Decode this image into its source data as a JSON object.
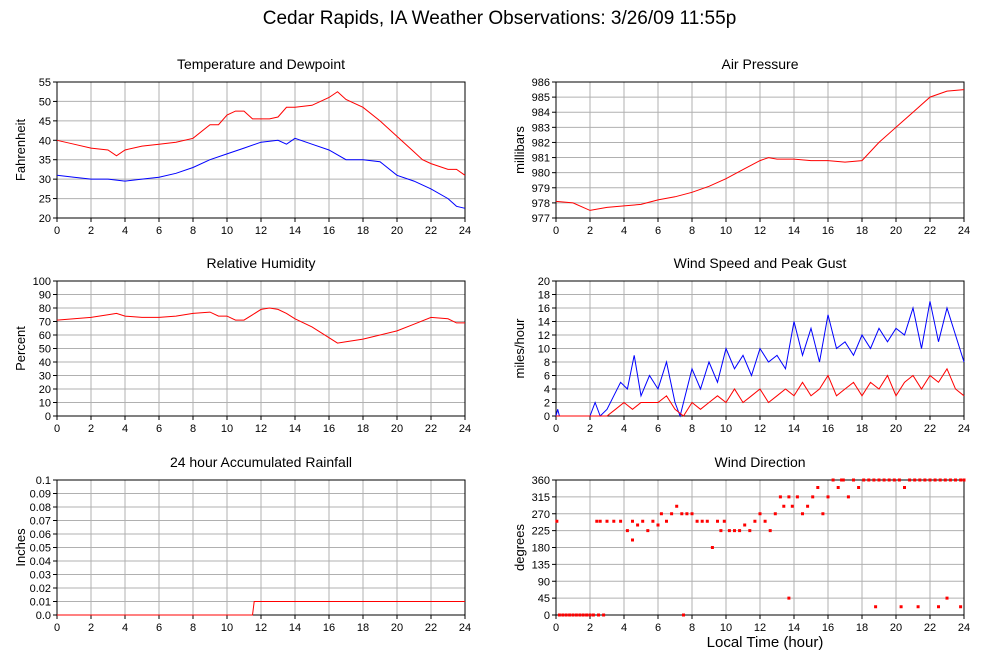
{
  "page": {
    "title": "Cedar Rapids, IA Weather Observations: 3/26/09 11:55p",
    "xlabel": "Local Time (hour)"
  },
  "colors": {
    "red": "#ff0000",
    "blue": "#0000ff",
    "grid": "#b0b0b0"
  },
  "chart_data": [
    {
      "id": "temp",
      "type": "line",
      "title": "Temperature and Dewpoint",
      "ylabel": "Fahrenheit",
      "xlim": [
        0,
        24
      ],
      "ylim": [
        20,
        55
      ],
      "xticks": [
        0,
        2,
        4,
        6,
        8,
        10,
        12,
        14,
        16,
        18,
        20,
        22,
        24
      ],
      "yticks": [
        20,
        25,
        30,
        35,
        40,
        45,
        50,
        55
      ],
      "ytick_labels": [
        "20",
        "25",
        "30",
        "35",
        "40",
        "45",
        "50",
        "55"
      ],
      "grid": true,
      "series": [
        {
          "color": "#ff0000",
          "x": [
            0,
            1,
            2,
            3,
            3.5,
            4,
            5,
            6,
            7,
            8,
            9,
            9.5,
            10,
            10.5,
            11,
            11.5,
            12,
            12.5,
            13,
            13.5,
            14,
            15,
            16,
            16.5,
            17,
            18,
            19,
            20,
            21,
            21.5,
            22,
            23,
            23.5,
            24
          ],
          "y": [
            40,
            39,
            38,
            37.5,
            36,
            37.5,
            38.5,
            39,
            39.5,
            40.5,
            44,
            44,
            46.5,
            47.5,
            47.5,
            45.5,
            45.5,
            45.5,
            46,
            48.5,
            48.5,
            49,
            51,
            52.5,
            50.5,
            48.5,
            45,
            41,
            37,
            35,
            34,
            32.5,
            32.5,
            31
          ]
        },
        {
          "color": "#0000ff",
          "x": [
            0,
            1,
            2,
            3,
            4,
            5,
            6,
            7,
            8,
            9,
            10,
            11,
            12,
            13,
            13.5,
            14,
            15,
            16,
            17,
            18,
            19,
            20,
            21,
            22,
            23,
            23.5,
            24
          ],
          "y": [
            31,
            30.5,
            30,
            30,
            29.5,
            30,
            30.5,
            31.5,
            33,
            35,
            36.5,
            38,
            39.5,
            40,
            39,
            40.5,
            39,
            37.5,
            35,
            35,
            34.5,
            31,
            29.5,
            27.5,
            25,
            23,
            22.5
          ]
        }
      ]
    },
    {
      "id": "pressure",
      "type": "line",
      "title": "Air Pressure",
      "ylabel": "millibars",
      "xlim": [
        0,
        24
      ],
      "ylim": [
        977,
        986
      ],
      "xticks": [
        0,
        2,
        4,
        6,
        8,
        10,
        12,
        14,
        16,
        18,
        20,
        22,
        24
      ],
      "yticks": [
        977,
        978,
        979,
        980,
        981,
        982,
        983,
        984,
        985,
        986
      ],
      "ytick_labels": [
        "977",
        "978",
        "979",
        "980",
        "981",
        "982",
        "983",
        "984",
        "985",
        "986"
      ],
      "grid": true,
      "series": [
        {
          "color": "#ff0000",
          "x": [
            0,
            1,
            2,
            3,
            4,
            5,
            6,
            7,
            8,
            9,
            10,
            11,
            12,
            12.5,
            13,
            14,
            15,
            16,
            17,
            18,
            19,
            20,
            21,
            22,
            23,
            24
          ],
          "y": [
            978.1,
            978,
            977.5,
            977.7,
            977.8,
            977.9,
            978.2,
            978.4,
            978.7,
            979.1,
            979.6,
            980.2,
            980.8,
            981,
            980.9,
            980.9,
            980.8,
            980.8,
            980.7,
            980.8,
            982,
            983,
            984,
            985,
            985.4,
            985.5
          ]
        }
      ]
    },
    {
      "id": "humidity",
      "type": "line",
      "title": "Relative Humidity",
      "ylabel": "Percent",
      "xlim": [
        0,
        24
      ],
      "ylim": [
        0,
        100
      ],
      "xticks": [
        0,
        2,
        4,
        6,
        8,
        10,
        12,
        14,
        16,
        18,
        20,
        22,
        24
      ],
      "yticks": [
        0,
        10,
        20,
        30,
        40,
        50,
        60,
        70,
        80,
        90,
        100
      ],
      "ytick_labels": [
        "0",
        "10",
        "20",
        "30",
        "40",
        "50",
        "60",
        "70",
        "80",
        "90",
        "100"
      ],
      "grid": true,
      "series": [
        {
          "color": "#ff0000",
          "x": [
            0,
            1,
            2,
            3,
            3.5,
            4,
            5,
            6,
            7,
            8,
            9,
            9.5,
            10,
            10.5,
            11,
            11.5,
            12,
            12.5,
            13,
            13.5,
            14,
            15,
            16,
            16.5,
            17,
            18,
            19,
            20,
            21,
            22,
            23,
            23.5,
            24
          ],
          "y": [
            71,
            72,
            73,
            75,
            76,
            74,
            73,
            73,
            74,
            76,
            77,
            74,
            74,
            71,
            71,
            75,
            79,
            80,
            79,
            76,
            72,
            66,
            58,
            54,
            55,
            57,
            60,
            63,
            68,
            73,
            72,
            69,
            69
          ]
        }
      ]
    },
    {
      "id": "wind",
      "type": "line",
      "title": "Wind Speed and Peak Gust",
      "ylabel": "miles/hour",
      "xlim": [
        0,
        24
      ],
      "ylim": [
        0,
        20
      ],
      "xticks": [
        0,
        2,
        4,
        6,
        8,
        10,
        12,
        14,
        16,
        18,
        20,
        22,
        24
      ],
      "yticks": [
        0,
        2,
        4,
        6,
        8,
        10,
        12,
        14,
        16,
        18,
        20
      ],
      "ytick_labels": [
        "0",
        "2",
        "4",
        "6",
        "8",
        "10",
        "12",
        "14",
        "16",
        "18",
        "20"
      ],
      "grid": true,
      "series": [
        {
          "color": "#0000ff",
          "x": [
            0,
            0.1,
            0.2,
            0.3,
            2,
            2.3,
            2.6,
            3,
            3.4,
            3.8,
            4.2,
            4.6,
            5,
            5.5,
            6,
            6.5,
            7,
            7.3,
            7.6,
            8,
            8.5,
            9,
            9.5,
            10,
            10.5,
            11,
            11.5,
            12,
            12.5,
            13,
            13.5,
            14,
            14.5,
            15,
            15.5,
            16,
            16.5,
            17,
            17.5,
            18,
            18.5,
            19,
            19.5,
            20,
            20.5,
            21,
            21.5,
            22,
            22.5,
            23,
            23.5,
            24
          ],
          "y": [
            0,
            1,
            0,
            0,
            0,
            2,
            0,
            1,
            3,
            5,
            4,
            9,
            3,
            6,
            4,
            8,
            2,
            0,
            3,
            7,
            4,
            8,
            5,
            10,
            7,
            9,
            6,
            10,
            8,
            9,
            7,
            14,
            9,
            13,
            8,
            15,
            10,
            11,
            9,
            12,
            10,
            13,
            11,
            13,
            12,
            16,
            10,
            17,
            11,
            16,
            12,
            8
          ]
        },
        {
          "color": "#ff0000",
          "x": [
            0,
            3,
            3.5,
            4,
            4.5,
            5,
            5.5,
            6,
            6.5,
            7,
            7.5,
            8,
            8.5,
            9,
            9.5,
            10,
            10.5,
            11,
            11.5,
            12,
            12.5,
            13,
            13.5,
            14,
            14.5,
            15,
            15.5,
            16,
            16.5,
            17,
            17.5,
            18,
            18.5,
            19,
            19.5,
            20,
            20.5,
            21,
            21.5,
            22,
            22.5,
            23,
            23.5,
            24
          ],
          "y": [
            0,
            0,
            1,
            2,
            1,
            2,
            2,
            2,
            3,
            1,
            0,
            2,
            1,
            2,
            3,
            2,
            4,
            2,
            3,
            4,
            2,
            3,
            4,
            3,
            5,
            3,
            4,
            6,
            3,
            4,
            5,
            3,
            5,
            4,
            6,
            3,
            5,
            6,
            4,
            6,
            5,
            7,
            4,
            3
          ]
        }
      ]
    },
    {
      "id": "rain",
      "type": "line",
      "title": "24 hour Accumulated Rainfall",
      "ylabel": "Inches",
      "xlim": [
        0,
        24
      ],
      "ylim": [
        0,
        0.1
      ],
      "xticks": [
        0,
        2,
        4,
        6,
        8,
        10,
        12,
        14,
        16,
        18,
        20,
        22,
        24
      ],
      "yticks": [
        0,
        0.01,
        0.02,
        0.03,
        0.04,
        0.05,
        0.06,
        0.07,
        0.08,
        0.09,
        0.1
      ],
      "ytick_labels": [
        "0.0",
        "0.01",
        "0.02",
        "0.03",
        "0.04",
        "0.05",
        "0.06",
        "0.07",
        "0.08",
        "0.09",
        "0.1"
      ],
      "grid": true,
      "series": [
        {
          "color": "#ff0000",
          "x": [
            0,
            11.5,
            11.6,
            24
          ],
          "y": [
            0,
            0,
            0.01,
            0.01
          ]
        }
      ]
    },
    {
      "id": "direction",
      "type": "scatter",
      "title": "Wind Direction",
      "ylabel": "degrees",
      "xlim": [
        0,
        24
      ],
      "ylim": [
        0,
        360
      ],
      "xticks": [
        0,
        2,
        4,
        6,
        8,
        10,
        12,
        14,
        16,
        18,
        20,
        22,
        24
      ],
      "yticks": [
        0,
        45,
        90,
        135,
        180,
        225,
        270,
        315,
        360
      ],
      "ytick_labels": [
        "0",
        "45",
        "90",
        "135",
        "180",
        "225",
        "270",
        "315",
        "360"
      ],
      "grid": true,
      "series": [
        {
          "color": "#ff0000",
          "x": [
            0.05,
            0.2,
            0.4,
            0.6,
            0.8,
            1.0,
            1.2,
            1.4,
            1.6,
            1.8,
            2.0,
            2.2,
            2.5,
            2.8,
            2.4,
            2.6,
            3.0,
            3.4,
            3.8,
            4.2,
            4.5,
            4.8,
            5.1,
            5.4,
            5.7,
            6.0,
            6.2,
            6.5,
            6.8,
            7.1,
            7.4,
            7.7,
            7.5,
            8.0,
            8.3,
            8.6,
            8.9,
            9.2,
            9.5,
            9.7,
            9.9,
            10.2,
            10.5,
            10.8,
            11.1,
            11.4,
            11.7,
            12.0,
            12.3,
            12.6,
            12.9,
            13.2,
            13.4,
            13.7,
            13.9,
            14.2,
            14.5,
            14.8,
            15.1,
            15.4,
            15.7,
            16.0,
            16.3,
            16.6,
            16.9,
            17.2,
            17.5,
            17.8,
            18.1,
            18.4,
            18.7,
            19.0,
            19.3,
            19.6,
            19.9,
            20.2,
            20.5,
            20.8,
            21.1,
            21.4,
            21.7,
            22.0,
            22.3,
            22.6,
            22.9,
            23.2,
            23.5,
            23.8,
            24.0,
            16.8,
            18.8,
            20.3,
            21.3,
            22.5,
            23.0,
            23.8,
            13.7,
            4.5,
            7.5
          ],
          "y": [
            250,
            0,
            0,
            0,
            0,
            0,
            0,
            0,
            0,
            0,
            0,
            0,
            0,
            0,
            250,
            250,
            250,
            250,
            250,
            225,
            250,
            240,
            250,
            225,
            250,
            240,
            270,
            250,
            270,
            290,
            270,
            270,
            0,
            270,
            250,
            250,
            250,
            180,
            250,
            225,
            250,
            225,
            225,
            225,
            240,
            225,
            250,
            270,
            250,
            225,
            270,
            315,
            290,
            315,
            290,
            315,
            270,
            290,
            315,
            340,
            270,
            315,
            360,
            340,
            360,
            315,
            360,
            340,
            360,
            360,
            360,
            360,
            360,
            360,
            360,
            360,
            340,
            360,
            360,
            360,
            360,
            360,
            360,
            360,
            360,
            360,
            360,
            360,
            360,
            360,
            22,
            22,
            22,
            22,
            45,
            22,
            45,
            200,
            0
          ]
        }
      ]
    }
  ]
}
